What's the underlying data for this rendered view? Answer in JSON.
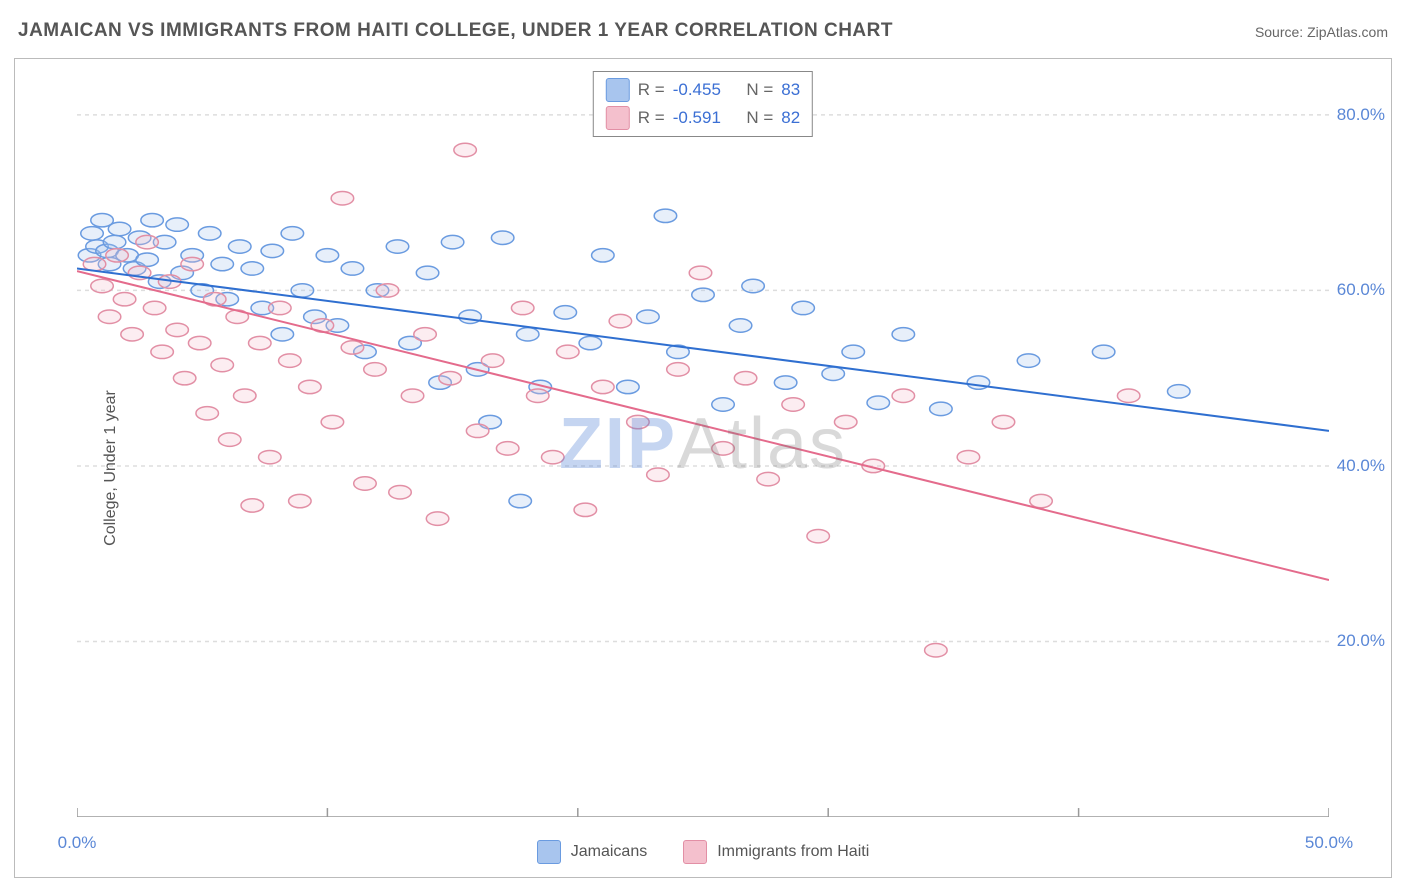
{
  "title": "JAMAICAN VS IMMIGRANTS FROM HAITI COLLEGE, UNDER 1 YEAR CORRELATION CHART",
  "source_label": "Source:",
  "source_name": "ZipAtlas.com",
  "ylabel": "College, Under 1 year",
  "watermark": {
    "part1": "ZIP",
    "part2": "Atlas"
  },
  "chart": {
    "type": "scatter-with-regression",
    "background_color": "#ffffff",
    "grid_color": "#dddddd",
    "grid_dash": "4 4",
    "axis_color": "#999999",
    "xlim": [
      0,
      50
    ],
    "ylim": [
      0,
      85
    ],
    "xticks": [
      0,
      10,
      20,
      30,
      40,
      50
    ],
    "xtick_labels": [
      "0.0%",
      "",
      "",
      "",
      "",
      "50.0%"
    ],
    "yticks": [
      20,
      40,
      60,
      80
    ],
    "ytick_labels": [
      "20.0%",
      "40.0%",
      "60.0%",
      "80.0%"
    ],
    "axis_label_color": "#5a87d6",
    "axis_label_fontsize": 17,
    "marker_radius": 9,
    "marker_stroke_width": 1.5,
    "marker_fill_opacity": 0.28,
    "line_width": 2,
    "series": [
      {
        "name": "Jamaicans",
        "color_stroke": "#6a9be0",
        "color_fill": "#a8c5ee",
        "line_color": "#2f6fd0",
        "R": "-0.455",
        "N": "83",
        "regression": {
          "x1": 0,
          "y1": 62.5,
          "x2": 50,
          "y2": 44
        },
        "points": [
          [
            0.5,
            64
          ],
          [
            0.6,
            66.5
          ],
          [
            0.8,
            65
          ],
          [
            1,
            68
          ],
          [
            1.2,
            64.5
          ],
          [
            1.3,
            63
          ],
          [
            1.5,
            65.5
          ],
          [
            1.7,
            67
          ],
          [
            2,
            64
          ],
          [
            2.3,
            62.5
          ],
          [
            2.5,
            66
          ],
          [
            2.8,
            63.5
          ],
          [
            3,
            68
          ],
          [
            3.3,
            61
          ],
          [
            3.5,
            65.5
          ],
          [
            4,
            67.5
          ],
          [
            4.2,
            62
          ],
          [
            4.6,
            64
          ],
          [
            5,
            60
          ],
          [
            5.3,
            66.5
          ],
          [
            5.8,
            63
          ],
          [
            6,
            59
          ],
          [
            6.5,
            65
          ],
          [
            7,
            62.5
          ],
          [
            7.4,
            58
          ],
          [
            7.8,
            64.5
          ],
          [
            8.2,
            55
          ],
          [
            8.6,
            66.5
          ],
          [
            9,
            60
          ],
          [
            9.5,
            57
          ],
          [
            10,
            64
          ],
          [
            10.4,
            56
          ],
          [
            11,
            62.5
          ],
          [
            11.5,
            53
          ],
          [
            12,
            60
          ],
          [
            12.8,
            65
          ],
          [
            13.3,
            54
          ],
          [
            14,
            62
          ],
          [
            14.5,
            49.5
          ],
          [
            15,
            65.5
          ],
          [
            15.7,
            57
          ],
          [
            16,
            51
          ],
          [
            16.5,
            45
          ],
          [
            17,
            66
          ],
          [
            17.7,
            36
          ],
          [
            18,
            55
          ],
          [
            18.5,
            49
          ],
          [
            19.5,
            57.5
          ],
          [
            20.5,
            54
          ],
          [
            21,
            64
          ],
          [
            22,
            49
          ],
          [
            22.8,
            57
          ],
          [
            23.5,
            68.5
          ],
          [
            24,
            53
          ],
          [
            25,
            59.5
          ],
          [
            25.8,
            47
          ],
          [
            26.5,
            56
          ],
          [
            27,
            60.5
          ],
          [
            28.3,
            49.5
          ],
          [
            29,
            58
          ],
          [
            30.2,
            50.5
          ],
          [
            31,
            53
          ],
          [
            32,
            47.2
          ],
          [
            33,
            55
          ],
          [
            34.5,
            46.5
          ],
          [
            36,
            49.5
          ],
          [
            38,
            52
          ],
          [
            41,
            53
          ],
          [
            44,
            48.5
          ]
        ]
      },
      {
        "name": "Immigrants from Haiti",
        "color_stroke": "#e28fa5",
        "color_fill": "#f4c0cd",
        "line_color": "#e46b8c",
        "R": "-0.591",
        "N": "82",
        "regression": {
          "x1": 0,
          "y1": 62.2,
          "x2": 50,
          "y2": 27
        },
        "points": [
          [
            0.7,
            63
          ],
          [
            1,
            60.5
          ],
          [
            1.3,
            57
          ],
          [
            1.6,
            64
          ],
          [
            1.9,
            59
          ],
          [
            2.2,
            55
          ],
          [
            2.5,
            62
          ],
          [
            2.8,
            65.5
          ],
          [
            3.1,
            58
          ],
          [
            3.4,
            53
          ],
          [
            3.7,
            61
          ],
          [
            4,
            55.5
          ],
          [
            4.3,
            50
          ],
          [
            4.6,
            63
          ],
          [
            4.9,
            54
          ],
          [
            5.2,
            46
          ],
          [
            5.5,
            59
          ],
          [
            5.8,
            51.5
          ],
          [
            6.1,
            43
          ],
          [
            6.4,
            57
          ],
          [
            6.7,
            48
          ],
          [
            7,
            35.5
          ],
          [
            7.3,
            54
          ],
          [
            7.7,
            41
          ],
          [
            8.1,
            58
          ],
          [
            8.5,
            52
          ],
          [
            8.9,
            36
          ],
          [
            9.3,
            49
          ],
          [
            9.8,
            56
          ],
          [
            10.2,
            45
          ],
          [
            10.6,
            70.5
          ],
          [
            11,
            53.5
          ],
          [
            11.5,
            38
          ],
          [
            11.9,
            51
          ],
          [
            12.4,
            60
          ],
          [
            12.9,
            37
          ],
          [
            13.4,
            48
          ],
          [
            13.9,
            55
          ],
          [
            14.4,
            34
          ],
          [
            14.9,
            50
          ],
          [
            15.5,
            76
          ],
          [
            16,
            44
          ],
          [
            16.6,
            52
          ],
          [
            17.2,
            42
          ],
          [
            17.8,
            58
          ],
          [
            18.4,
            48
          ],
          [
            19,
            41
          ],
          [
            19.6,
            53
          ],
          [
            20.3,
            35
          ],
          [
            21,
            49
          ],
          [
            21.7,
            56.5
          ],
          [
            22.4,
            45
          ],
          [
            23.2,
            39
          ],
          [
            24,
            51
          ],
          [
            24.9,
            62
          ],
          [
            25.8,
            42
          ],
          [
            26.7,
            50
          ],
          [
            27.6,
            38.5
          ],
          [
            28.6,
            47
          ],
          [
            29.6,
            32
          ],
          [
            30.7,
            45
          ],
          [
            31.8,
            40
          ],
          [
            33,
            48
          ],
          [
            34.3,
            19
          ],
          [
            35.6,
            41
          ],
          [
            37,
            45
          ],
          [
            38.5,
            36
          ],
          [
            42,
            48
          ]
        ]
      }
    ]
  },
  "legend_bottom": [
    {
      "name": "Jamaicans",
      "fill": "#a8c5ee",
      "stroke": "#6a9be0"
    },
    {
      "name": "Immigrants from Haiti",
      "fill": "#f4c0cd",
      "stroke": "#e28fa5"
    }
  ]
}
